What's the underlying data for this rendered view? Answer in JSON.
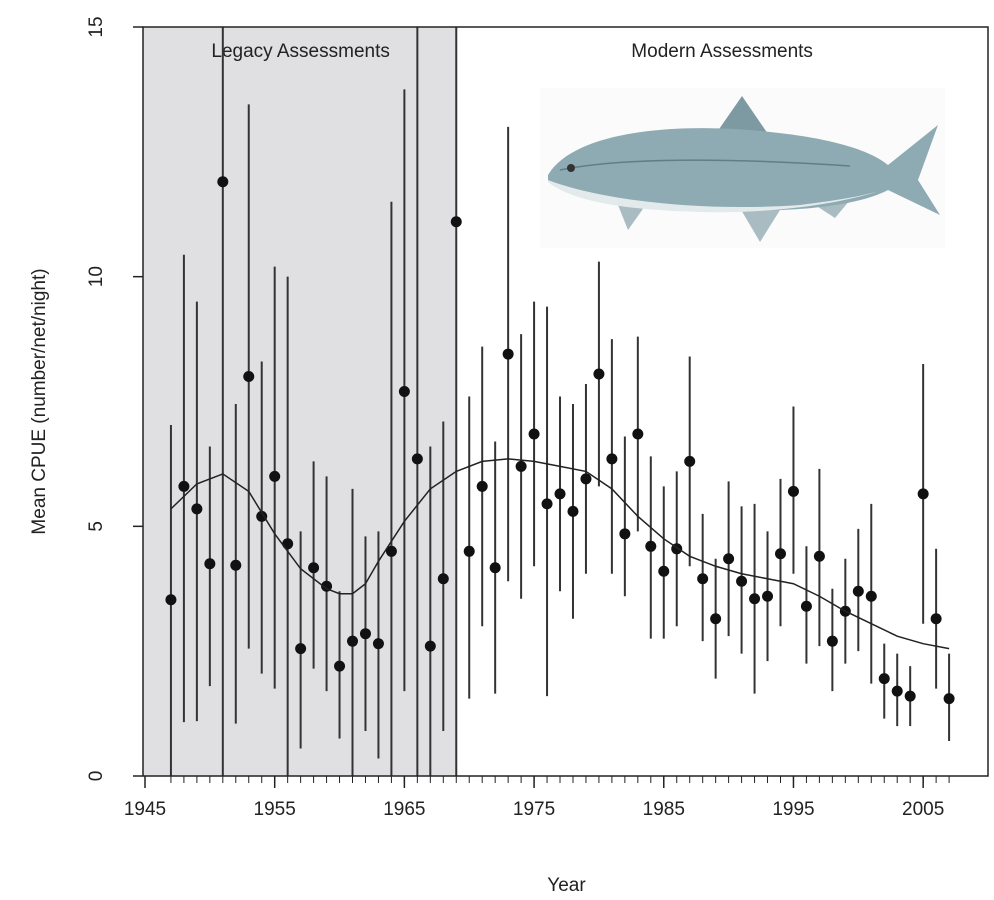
{
  "chart_data": {
    "type": "scatter",
    "x_label": "Year",
    "y_label": "Mean CPUE (number/net/night)",
    "annotations": [
      "Legacy Assessments",
      "Modern Assessments"
    ],
    "shaded_x": [
      1945,
      1969
    ],
    "shade_color": "#e0e0e3",
    "xlim": [
      1945,
      2010
    ],
    "ylim": [
      0,
      15
    ],
    "xticks": [
      1945,
      1955,
      1965,
      1975,
      1985,
      1995,
      2005
    ],
    "yticks": [
      0,
      5,
      10,
      15
    ],
    "series": [
      {
        "type": "scatter",
        "color": "#111111",
        "x": [
          1947,
          1948,
          1949,
          1950,
          1951,
          1952,
          1953,
          1954,
          1955,
          1956,
          1957,
          1958,
          1959,
          1960,
          1961,
          1962,
          1963,
          1964,
          1965,
          1966,
          1967,
          1968,
          1969,
          1970,
          1971,
          1972,
          1973,
          1974,
          1975,
          1976,
          1977,
          1978,
          1979,
          1980,
          1981,
          1982,
          1983,
          1984,
          1985,
          1986,
          1987,
          1988,
          1989,
          1990,
          1991,
          1992,
          1993,
          1994,
          1995,
          1996,
          1997,
          1998,
          1999,
          2000,
          2001,
          2002,
          2003,
          2004,
          2005,
          2006,
          2007
        ],
        "values": [
          3.53,
          5.8,
          5.35,
          4.25,
          11.9,
          4.22,
          8.0,
          5.2,
          6.0,
          4.65,
          2.55,
          4.17,
          3.8,
          2.2,
          2.7,
          2.85,
          2.65,
          4.5,
          7.7,
          6.35,
          2.6,
          3.95,
          11.1,
          4.5,
          5.8,
          4.17,
          8.45,
          6.2,
          6.85,
          5.45,
          5.65,
          5.3,
          5.95,
          8.05,
          6.35,
          4.85,
          6.85,
          4.6,
          4.1,
          4.55,
          6.3,
          3.95,
          3.15,
          4.35,
          3.9,
          3.55,
          3.6,
          4.45,
          5.7,
          3.4,
          4.4,
          2.7,
          3.3,
          3.7,
          3.6,
          1.95,
          1.7,
          1.6,
          5.65,
          3.15,
          1.55
        ],
        "lower": [
          0,
          1.08,
          1.1,
          1.8,
          0,
          1.05,
          2.55,
          2.05,
          1.75,
          0,
          0.55,
          2.15,
          1.7,
          0.75,
          0,
          0.9,
          0.35,
          0,
          1.7,
          0,
          0,
          0.9,
          0,
          1.55,
          3.0,
          1.65,
          3.9,
          3.55,
          4.2,
          1.6,
          3.7,
          3.15,
          4.05,
          5.8,
          4.05,
          3.6,
          4.9,
          2.75,
          2.75,
          3.0,
          4.2,
          2.7,
          1.95,
          2.8,
          2.45,
          1.65,
          2.3,
          3.0,
          4.05,
          2.25,
          2.6,
          1.7,
          2.25,
          2.5,
          1.85,
          1.15,
          1.0,
          1.0,
          3.05,
          1.75,
          0.7
        ],
        "upper": [
          7.03,
          10.44,
          9.5,
          6.6,
          15,
          7.45,
          13.45,
          8.3,
          10.2,
          10.0,
          4.9,
          6.3,
          6.0,
          3.7,
          5.75,
          4.8,
          4.9,
          11.5,
          13.75,
          15,
          6.6,
          7.1,
          15,
          7.6,
          8.6,
          6.7,
          13.0,
          8.85,
          9.5,
          9.4,
          7.6,
          7.45,
          7.85,
          10.3,
          8.75,
          6.8,
          8.8,
          6.4,
          5.8,
          6.1,
          8.4,
          5.25,
          4.35,
          5.9,
          5.4,
          5.45,
          4.9,
          5.95,
          7.4,
          4.6,
          6.15,
          3.75,
          4.35,
          4.95,
          5.45,
          2.65,
          2.45,
          2.2,
          8.25,
          4.55,
          2.45
        ]
      },
      {
        "type": "line",
        "color": "#222222",
        "x": [
          1947,
          1949,
          1951,
          1953,
          1955,
          1957,
          1959,
          1960,
          1961,
          1962,
          1963,
          1965,
          1967,
          1969,
          1971,
          1973,
          1975,
          1977,
          1979,
          1981,
          1983,
          1985,
          1987,
          1989,
          1991,
          1993,
          1995,
          1997,
          1999,
          2001,
          2003,
          2005,
          2007
        ],
        "values": [
          5.35,
          5.85,
          6.05,
          5.7,
          4.85,
          4.15,
          3.75,
          3.65,
          3.65,
          3.85,
          4.3,
          5.1,
          5.75,
          6.1,
          6.3,
          6.35,
          6.3,
          6.2,
          6.1,
          5.75,
          5.2,
          4.75,
          4.4,
          4.2,
          4.05,
          3.95,
          3.85,
          3.6,
          3.3,
          3.05,
          2.8,
          2.65,
          2.55
        ]
      }
    ]
  }
}
